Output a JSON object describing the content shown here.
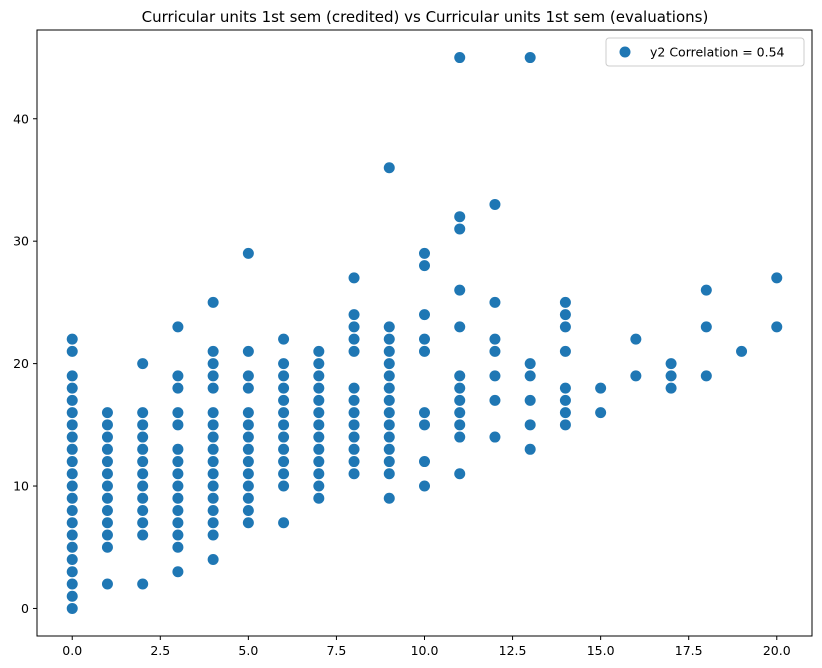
{
  "chart_data": {
    "type": "scatter",
    "title": "Curricular units 1st sem (credited) vs Curricular units 1st sem (evaluations)",
    "xlabel": "",
    "ylabel": "",
    "xlim": [
      -1,
      21
    ],
    "ylim": [
      -2.25,
      47.25
    ],
    "x_ticks": [
      0,
      2.5,
      5,
      7.5,
      10,
      12.5,
      15,
      17.5,
      20
    ],
    "x_tick_labels": [
      "0.0",
      "2.5",
      "5.0",
      "7.5",
      "10.0",
      "12.5",
      "15.0",
      "17.5",
      "20.0"
    ],
    "y_ticks": [
      0,
      10,
      20,
      30,
      40
    ],
    "y_tick_labels": [
      "0",
      "10",
      "20",
      "30",
      "40"
    ],
    "grid": false,
    "legend": {
      "position": "top-right",
      "label": "y2 Correlation = 0.54"
    },
    "color": "#1f77b4",
    "points": [
      [
        0,
        0
      ],
      [
        0,
        1
      ],
      [
        0,
        2
      ],
      [
        0,
        3
      ],
      [
        0,
        4
      ],
      [
        0,
        5
      ],
      [
        0,
        6
      ],
      [
        0,
        7
      ],
      [
        0,
        8
      ],
      [
        0,
        9
      ],
      [
        0,
        10
      ],
      [
        0,
        11
      ],
      [
        0,
        12
      ],
      [
        0,
        13
      ],
      [
        0,
        14
      ],
      [
        0,
        15
      ],
      [
        0,
        16
      ],
      [
        0,
        17
      ],
      [
        0,
        18
      ],
      [
        0,
        19
      ],
      [
        0,
        21
      ],
      [
        0,
        22
      ],
      [
        1,
        2
      ],
      [
        1,
        5
      ],
      [
        1,
        6
      ],
      [
        1,
        7
      ],
      [
        1,
        8
      ],
      [
        1,
        9
      ],
      [
        1,
        10
      ],
      [
        1,
        11
      ],
      [
        1,
        12
      ],
      [
        1,
        13
      ],
      [
        1,
        14
      ],
      [
        1,
        15
      ],
      [
        1,
        16
      ],
      [
        2,
        2
      ],
      [
        2,
        6
      ],
      [
        2,
        7
      ],
      [
        2,
        8
      ],
      [
        2,
        9
      ],
      [
        2,
        10
      ],
      [
        2,
        11
      ],
      [
        2,
        12
      ],
      [
        2,
        13
      ],
      [
        2,
        14
      ],
      [
        2,
        15
      ],
      [
        2,
        16
      ],
      [
        2,
        20
      ],
      [
        3,
        3
      ],
      [
        3,
        5
      ],
      [
        3,
        6
      ],
      [
        3,
        7
      ],
      [
        3,
        8
      ],
      [
        3,
        9
      ],
      [
        3,
        10
      ],
      [
        3,
        11
      ],
      [
        3,
        12
      ],
      [
        3,
        13
      ],
      [
        3,
        15
      ],
      [
        3,
        16
      ],
      [
        3,
        18
      ],
      [
        3,
        19
      ],
      [
        3,
        23
      ],
      [
        4,
        4
      ],
      [
        4,
        6
      ],
      [
        4,
        7
      ],
      [
        4,
        8
      ],
      [
        4,
        9
      ],
      [
        4,
        10
      ],
      [
        4,
        11
      ],
      [
        4,
        12
      ],
      [
        4,
        13
      ],
      [
        4,
        14
      ],
      [
        4,
        15
      ],
      [
        4,
        16
      ],
      [
        4,
        18
      ],
      [
        4,
        19
      ],
      [
        4,
        20
      ],
      [
        4,
        21
      ],
      [
        4,
        25
      ],
      [
        5,
        7
      ],
      [
        5,
        8
      ],
      [
        5,
        9
      ],
      [
        5,
        10
      ],
      [
        5,
        11
      ],
      [
        5,
        12
      ],
      [
        5,
        13
      ],
      [
        5,
        14
      ],
      [
        5,
        15
      ],
      [
        5,
        16
      ],
      [
        5,
        18
      ],
      [
        5,
        19
      ],
      [
        5,
        21
      ],
      [
        5,
        29
      ],
      [
        6,
        7
      ],
      [
        6,
        10
      ],
      [
        6,
        11
      ],
      [
        6,
        12
      ],
      [
        6,
        13
      ],
      [
        6,
        14
      ],
      [
        6,
        15
      ],
      [
        6,
        16
      ],
      [
        6,
        17
      ],
      [
        6,
        18
      ],
      [
        6,
        19
      ],
      [
        6,
        20
      ],
      [
        6,
        22
      ],
      [
        7,
        9
      ],
      [
        7,
        10
      ],
      [
        7,
        11
      ],
      [
        7,
        12
      ],
      [
        7,
        13
      ],
      [
        7,
        14
      ],
      [
        7,
        15
      ],
      [
        7,
        16
      ],
      [
        7,
        17
      ],
      [
        7,
        18
      ],
      [
        7,
        19
      ],
      [
        7,
        20
      ],
      [
        7,
        21
      ],
      [
        8,
        11
      ],
      [
        8,
        12
      ],
      [
        8,
        13
      ],
      [
        8,
        14
      ],
      [
        8,
        15
      ],
      [
        8,
        16
      ],
      [
        8,
        17
      ],
      [
        8,
        18
      ],
      [
        8,
        21
      ],
      [
        8,
        22
      ],
      [
        8,
        23
      ],
      [
        8,
        24
      ],
      [
        8,
        27
      ],
      [
        9,
        9
      ],
      [
        9,
        11
      ],
      [
        9,
        12
      ],
      [
        9,
        13
      ],
      [
        9,
        14
      ],
      [
        9,
        15
      ],
      [
        9,
        16
      ],
      [
        9,
        17
      ],
      [
        9,
        18
      ],
      [
        9,
        19
      ],
      [
        9,
        20
      ],
      [
        9,
        21
      ],
      [
        9,
        22
      ],
      [
        9,
        23
      ],
      [
        9,
        36
      ],
      [
        10,
        10
      ],
      [
        10,
        12
      ],
      [
        10,
        15
      ],
      [
        10,
        16
      ],
      [
        10,
        21
      ],
      [
        10,
        22
      ],
      [
        10,
        24
      ],
      [
        10,
        28
      ],
      [
        10,
        29
      ],
      [
        11,
        11
      ],
      [
        11,
        14
      ],
      [
        11,
        15
      ],
      [
        11,
        16
      ],
      [
        11,
        17
      ],
      [
        11,
        18
      ],
      [
        11,
        19
      ],
      [
        11,
        23
      ],
      [
        11,
        26
      ],
      [
        11,
        31
      ],
      [
        11,
        32
      ],
      [
        11,
        45
      ],
      [
        12,
        14
      ],
      [
        12,
        17
      ],
      [
        12,
        19
      ],
      [
        12,
        21
      ],
      [
        12,
        22
      ],
      [
        12,
        25
      ],
      [
        12,
        33
      ],
      [
        13,
        13
      ],
      [
        13,
        15
      ],
      [
        13,
        17
      ],
      [
        13,
        19
      ],
      [
        13,
        20
      ],
      [
        13,
        45
      ],
      [
        14,
        15
      ],
      [
        14,
        16
      ],
      [
        14,
        17
      ],
      [
        14,
        18
      ],
      [
        14,
        21
      ],
      [
        14,
        23
      ],
      [
        14,
        24
      ],
      [
        14,
        25
      ],
      [
        15,
        16
      ],
      [
        15,
        18
      ],
      [
        16,
        19
      ],
      [
        16,
        22
      ],
      [
        17,
        18
      ],
      [
        17,
        19
      ],
      [
        17,
        20
      ],
      [
        18,
        19
      ],
      [
        18,
        23
      ],
      [
        18,
        26
      ],
      [
        19,
        21
      ],
      [
        20,
        23
      ],
      [
        20,
        27
      ]
    ]
  }
}
